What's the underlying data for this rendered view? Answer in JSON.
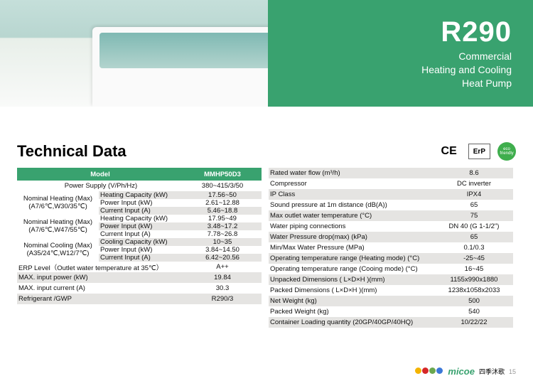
{
  "hero": {
    "title": "R290",
    "sub1": "Commercial",
    "sub2": "Heating and Cooling",
    "sub3": "Heat Pump",
    "accent_color": "#39a26f",
    "photo_top": "#c5dfda",
    "photo_bottom": "#f9faf9"
  },
  "section_title": "Technical Data",
  "badges": {
    "ce": "CE",
    "erp": "ErP",
    "eco": "eco friendly",
    "border_color": "#555555",
    "eco_bg": "#3fae4d"
  },
  "left_table": {
    "header": {
      "model": "Model",
      "value": "MMHP50D3"
    },
    "power_supply": {
      "label": "Power Supply (V/Ph/Hz)",
      "value": "380~415/3/50"
    },
    "groups": [
      {
        "title": "Nominal Heating (Max)",
        "cond": "(A7/6℃,W30/35℃)",
        "rows": [
          {
            "label": "Heating Capacity (kW)",
            "value": "17.56~50",
            "alt": true
          },
          {
            "label": "Power Input (kW)",
            "value": "2.61~12.88",
            "alt": false
          },
          {
            "label": "Current Input (A)",
            "value": "5.46~18.8",
            "alt": true
          }
        ]
      },
      {
        "title": "Nominal Heating (Max)",
        "cond": "(A7/6℃,W47/55℃)",
        "rows": [
          {
            "label": "Heating Capacity (kW)",
            "value": "17.95~49",
            "alt": false
          },
          {
            "label": "Power Input (kW)",
            "value": "3.48~17.2",
            "alt": true
          },
          {
            "label": "Current Input (A)",
            "value": "7.78~26.8",
            "alt": false
          }
        ]
      },
      {
        "title": "Nominal Cooling (Max)",
        "cond": "(A35/24℃,W12/7℃)",
        "rows": [
          {
            "label": "Cooling Capacity (kW)",
            "value": "10~35",
            "alt": true
          },
          {
            "label": "Power Input (kW)",
            "value": "3.84~14.50",
            "alt": false
          },
          {
            "label": "Current Input (A)",
            "value": "6.42~20.56",
            "alt": true
          }
        ]
      }
    ],
    "flat_rows": [
      {
        "label": "ERP Level（Outlet water temperature at 35℃）",
        "value": "A++",
        "alt": false
      },
      {
        "label": "MAX. input power (kW)",
        "value": "19.84",
        "alt": true
      },
      {
        "label": "MAX. input current (A)",
        "value": "30.3",
        "alt": false
      },
      {
        "label": "Refrigerant /GWP",
        "value": "R290/3",
        "alt": true
      }
    ]
  },
  "right_table": {
    "rows": [
      {
        "label": "Rated water flow (m³/h)",
        "value": "8.6",
        "alt": true
      },
      {
        "label": "Compressor",
        "value": "DC inverter",
        "alt": false
      },
      {
        "label": "IP Class",
        "value": "IPX4",
        "alt": true
      },
      {
        "label": "Sound pressure at 1m distance (dB(A))",
        "value": "65",
        "alt": false
      },
      {
        "label": "Max outlet water temperature (°C)",
        "value": "75",
        "alt": true
      },
      {
        "label": "Water piping connections",
        "value": "DN 40 (G 1-1/2\")",
        "alt": false
      },
      {
        "label": "Water Pressure drop(max) (kPa)",
        "value": "65",
        "alt": true
      },
      {
        "label": "Min/Max Water Pressure (MPa)",
        "value": "0.1/0.3",
        "alt": false
      },
      {
        "label": "Operating temperature range (Heating mode) (°C)",
        "value": "-25~45",
        "alt": true
      },
      {
        "label": "Operating temperature range (Cooing mode) (°C)",
        "value": "16~45",
        "alt": false
      },
      {
        "label": "Unpacked Dimensions ( L×D×H )(mm)",
        "value": "1155x990x1880",
        "alt": true
      },
      {
        "label": "Packed Dimensions ( L×D×H )(mm)",
        "value": "1238x1058x2033",
        "alt": false
      },
      {
        "label": "Net Weight (kg)",
        "value": "500",
        "alt": true
      },
      {
        "label": "Packed Weight (kg)",
        "value": "540",
        "alt": false
      },
      {
        "label": "Container Loading quantity (20GP/40GP/40HQ)",
        "value": "10/22/22",
        "alt": true
      }
    ]
  },
  "footer": {
    "brand": "micoe",
    "brand_sub": "四季沐歌",
    "page": "15",
    "dot_colors": [
      "#f4b400",
      "#d62728",
      "#6aa84f",
      "#3c78d8"
    ]
  },
  "colors": {
    "alt_row": "#e5e4e2",
    "text": "#111111"
  }
}
